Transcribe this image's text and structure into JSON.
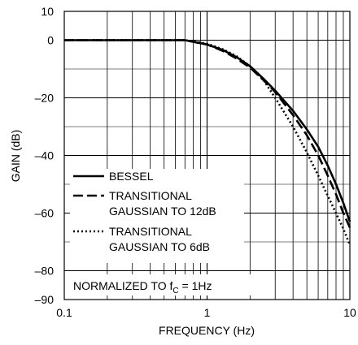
{
  "chart_data": {
    "type": "line",
    "title": "",
    "xlabel": "FREQUENCY (Hz)",
    "ylabel": "GAIN (dB)",
    "xscale": "log",
    "xlim": [
      0.1,
      10
    ],
    "ylim": [
      -90,
      10
    ],
    "x_ticks": [
      {
        "value": 0.1,
        "label": "0.1"
      },
      {
        "value": 1,
        "label": "1"
      },
      {
        "value": 10,
        "label": "10"
      }
    ],
    "y_ticks": [
      {
        "value": 10,
        "label": "10"
      },
      {
        "value": 0,
        "label": "0"
      },
      {
        "value": -20,
        "label": "–20"
      },
      {
        "value": -40,
        "label": "–40"
      },
      {
        "value": -60,
        "label": "–60"
      },
      {
        "value": -80,
        "label": "–80"
      },
      {
        "value": -90,
        "label": "–90"
      }
    ],
    "grid": true,
    "legend_position": "lower-left",
    "annotation_prefix": "NORMALIZED TO f",
    "annotation_sub": "C",
    "annotation_suffix": " = 1Hz",
    "series": [
      {
        "name": "BESSEL",
        "style": "solid",
        "x": [
          0.1,
          0.2,
          0.3,
          0.5,
          0.7,
          1,
          1.3,
          1.6,
          2,
          2.5,
          3,
          4,
          5,
          6,
          7,
          8,
          9,
          10
        ],
        "y": [
          0,
          0,
          0,
          0,
          0,
          -1.5,
          -3.5,
          -5.8,
          -9,
          -13.5,
          -17.5,
          -24.5,
          -31,
          -37,
          -43.5,
          -50,
          -56.5,
          -63
        ]
      },
      {
        "name": "TRANSITIONAL GAUSSIAN TO 12dB",
        "style": "dashed",
        "x": [
          0.1,
          0.2,
          0.3,
          0.5,
          0.7,
          1,
          1.3,
          1.6,
          2,
          2.5,
          3,
          4,
          5,
          6,
          7,
          8,
          9,
          10
        ],
        "y": [
          0,
          0,
          0,
          0,
          0,
          -1.5,
          -3.8,
          -6.3,
          -9.5,
          -14,
          -18,
          -26,
          -33,
          -40,
          -47,
          -53.5,
          -60,
          -65
        ]
      },
      {
        "name": "TRANSITIONAL GAUSSIAN TO 6dB",
        "style": "dotted",
        "x": [
          0.1,
          0.2,
          0.3,
          0.5,
          0.7,
          1,
          1.3,
          1.6,
          2,
          2.5,
          3,
          4,
          5,
          6,
          7,
          8,
          9,
          10
        ],
        "y": [
          0,
          0,
          0,
          0,
          0,
          -1.2,
          -3.2,
          -5.5,
          -9,
          -14,
          -20,
          -30,
          -39,
          -47,
          -54,
          -60,
          -65.5,
          -71
        ]
      }
    ],
    "legend": [
      {
        "style": "solid",
        "line1": "BESSEL",
        "line2": ""
      },
      {
        "style": "dashed",
        "line1": "TRANSITIONAL",
        "line2": "GAUSSIAN TO 12dB"
      },
      {
        "style": "dotted",
        "line1": "TRANSITIONAL",
        "line2": "GAUSSIAN TO 6dB"
      }
    ]
  }
}
